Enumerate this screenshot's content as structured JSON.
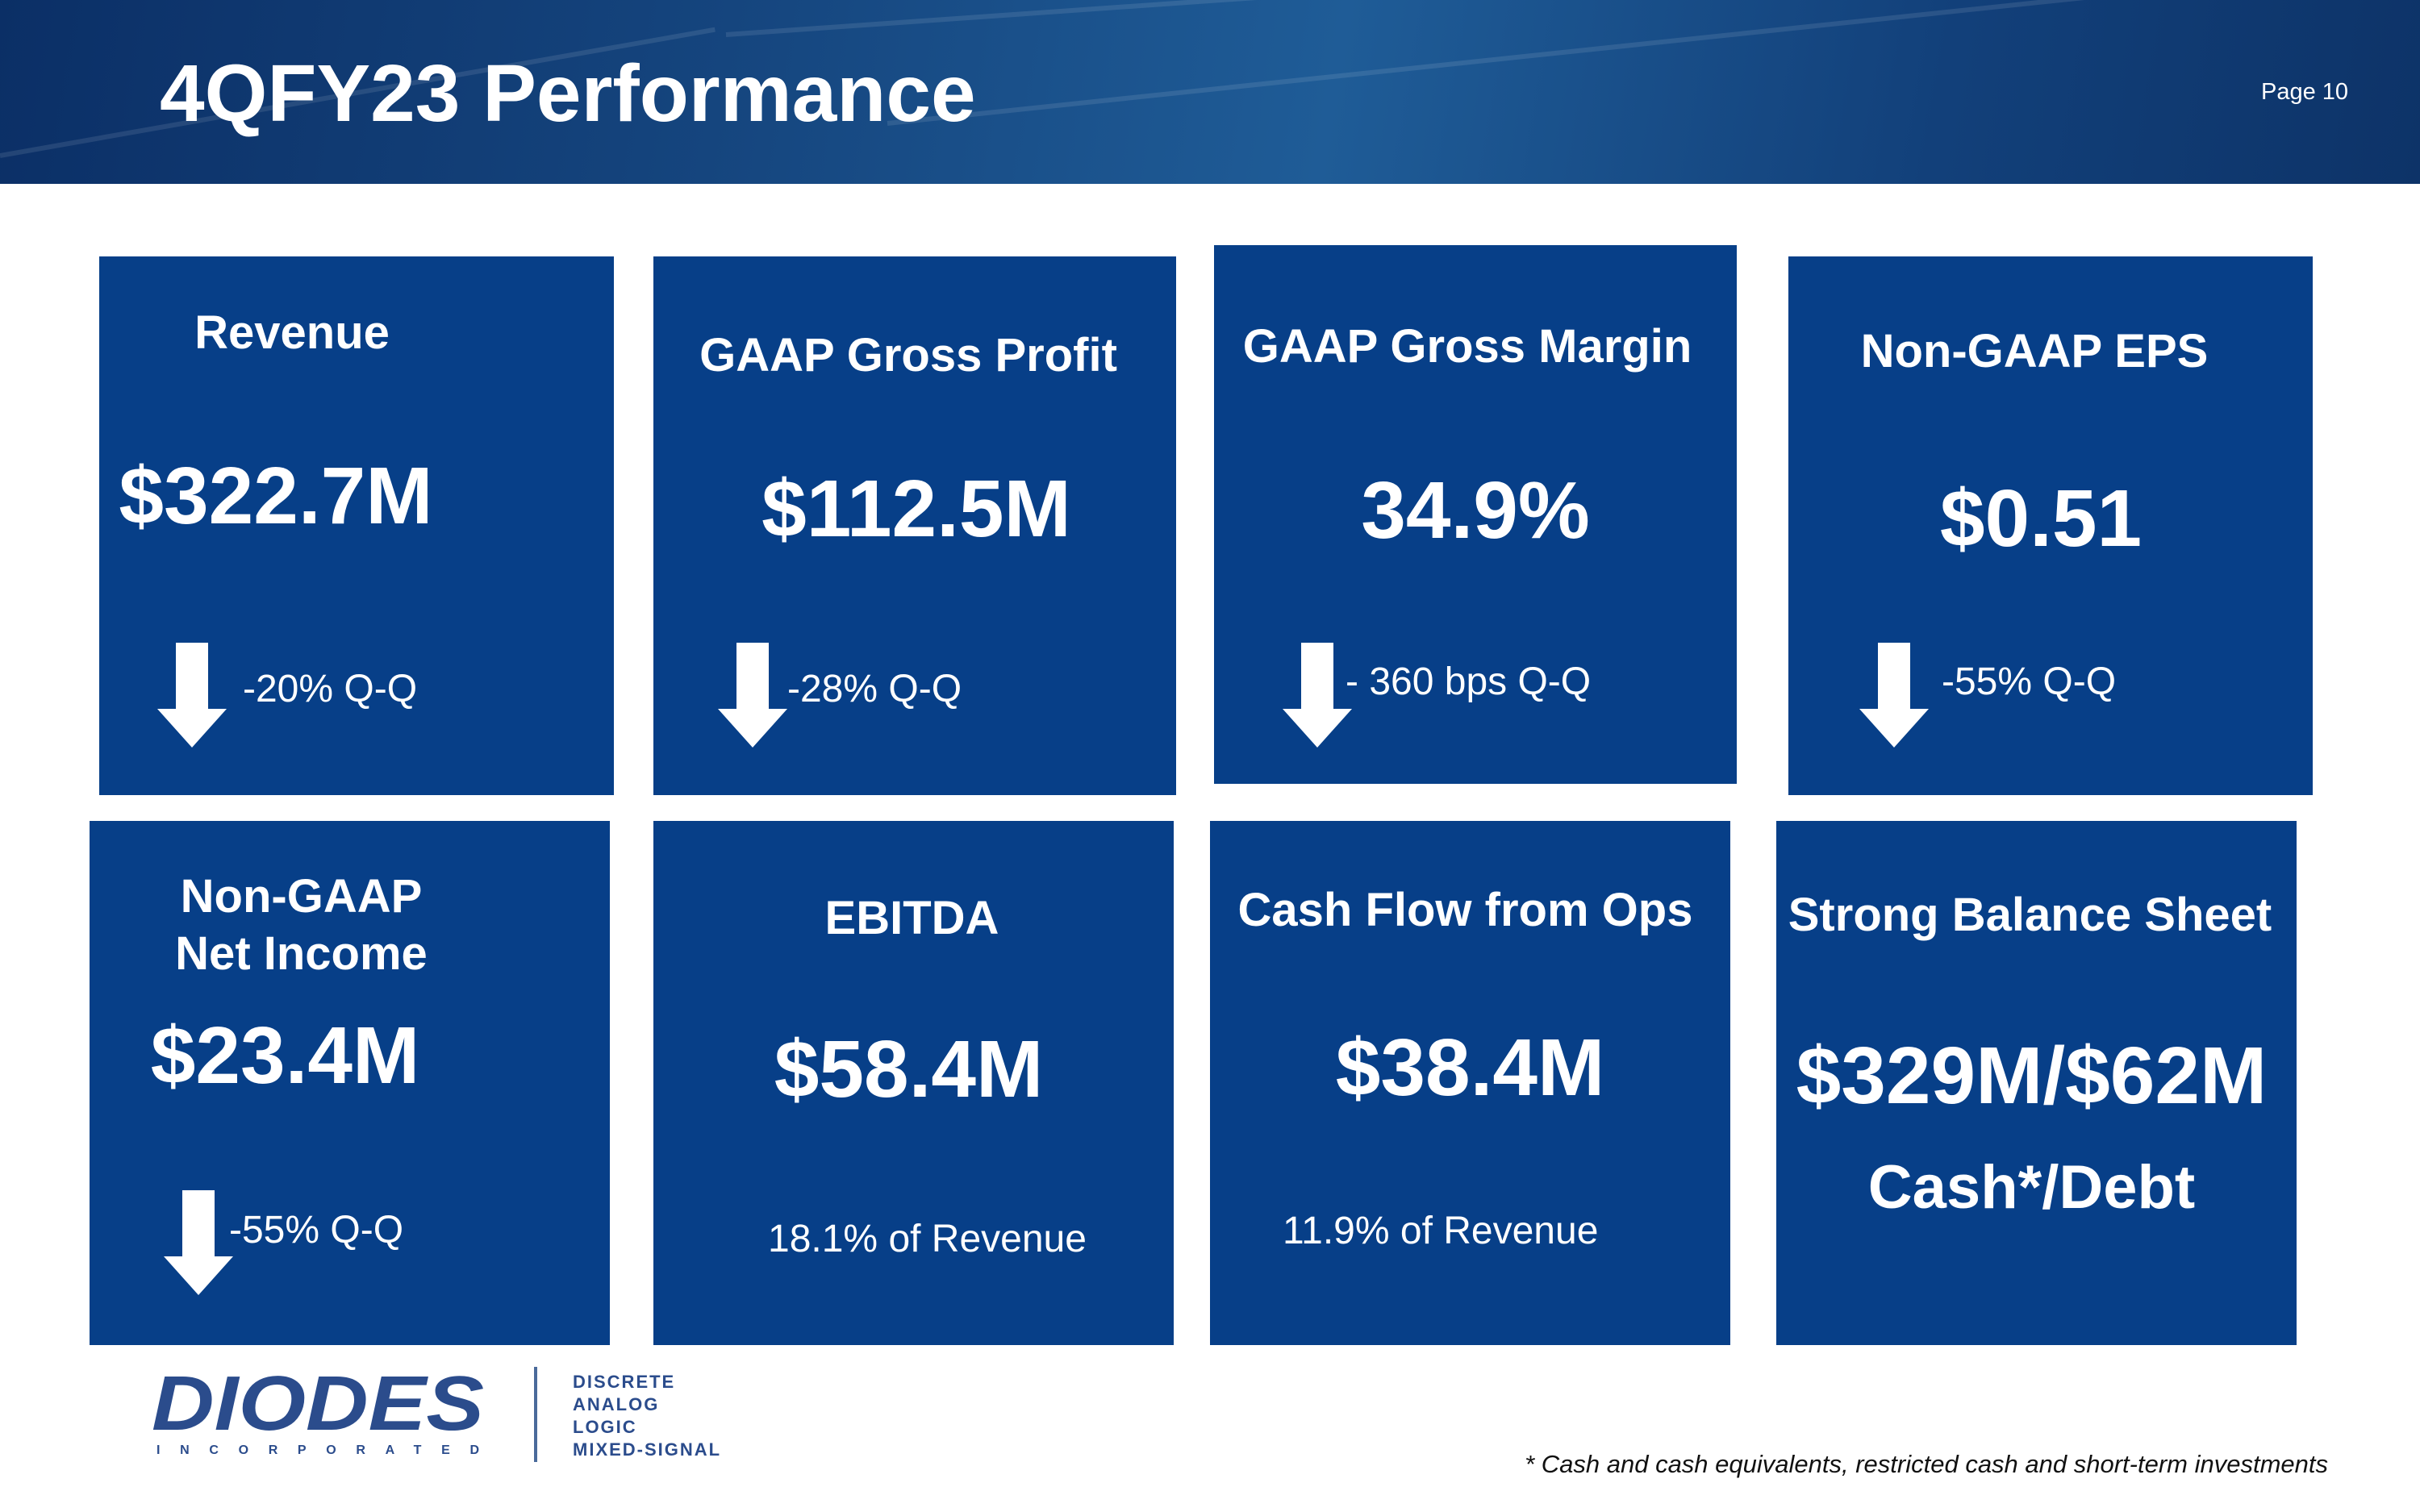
{
  "header": {
    "title": "4QFY23 Performance",
    "page_label": "Page 10"
  },
  "cards": [
    {
      "title": "Revenue",
      "value": "$322.7M",
      "change": "-20%  Q-Q",
      "direction": "down"
    },
    {
      "title": "GAAP Gross Profit",
      "value": "$112.5M",
      "change": "-28% Q-Q",
      "direction": "down"
    },
    {
      "title": "GAAP Gross Margin",
      "value": "34.9%",
      "change": "- 360 bps Q-Q",
      "direction": "down"
    },
    {
      "title": "Non-GAAP EPS",
      "value": "$0.51",
      "change": "-55% Q-Q",
      "direction": "down"
    },
    {
      "title_line1": "Non-GAAP",
      "title_line2": "Net Income",
      "value": "$23.4M",
      "change": "-55% Q-Q",
      "direction": "down"
    },
    {
      "title": "EBITDA",
      "value": "$58.4M",
      "note": "18.1% of Revenue"
    },
    {
      "title": "Cash Flow from Ops",
      "value": "$38.4M",
      "note": "11.9% of Revenue"
    },
    {
      "title": "Strong Balance Sheet",
      "value": "$329M/$62M",
      "note": "Cash*/Debt"
    }
  ],
  "logo": {
    "name": "DIODES",
    "subtitle": "INCORPORATED",
    "lines": [
      "DISCRETE",
      "ANALOG",
      "LOGIC",
      "MIXED-SIGNAL"
    ]
  },
  "footnote": "* Cash and cash equivalents, restricted cash and short-term investments",
  "colors": {
    "card_blue": "#073f88",
    "header_blue": "#15457e",
    "logo_blue": "#2b4c8c"
  }
}
